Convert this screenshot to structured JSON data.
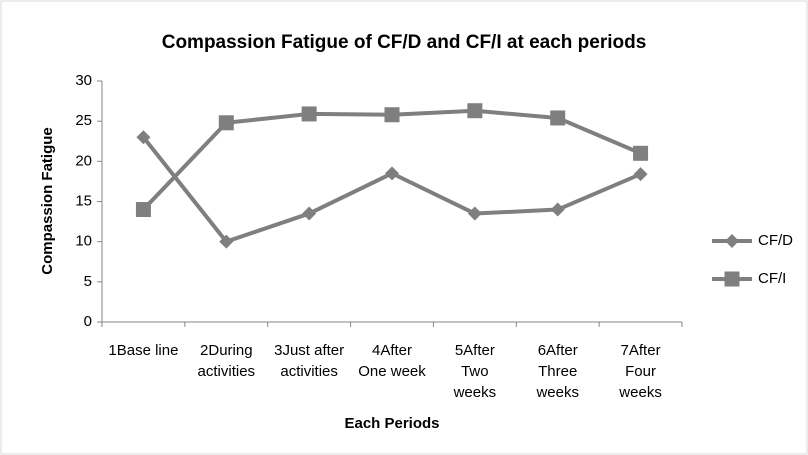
{
  "chart_data": {
    "type": "line",
    "title": "Compassion Fatigue of CF/D and CF/I at each periods",
    "x_label": "Each Periods",
    "y_label": "Compassion Fatigue",
    "categories": [
      "1Base line",
      "2During\nactivities",
      "3Just after\nactivities",
      "4After\nOne week",
      "5After\nTwo\nweeks",
      "6After\nThree\nweeks",
      "7After\nFour\nweeks"
    ],
    "series": [
      {
        "name": "CF/D",
        "color": "#7f7f7f",
        "marker": "diamond",
        "values": [
          23,
          10,
          13.5,
          18.5,
          13.5,
          14,
          18.4
        ]
      },
      {
        "name": "CF/I",
        "color": "#7f7f7f",
        "marker": "square",
        "values": [
          14,
          24.8,
          25.9,
          25.8,
          26.3,
          25.4,
          21
        ]
      }
    ],
    "ylim": [
      0,
      30
    ],
    "yticks": [
      0,
      5,
      10,
      15,
      20,
      25,
      30
    ],
    "grid": false,
    "legend": "right"
  }
}
